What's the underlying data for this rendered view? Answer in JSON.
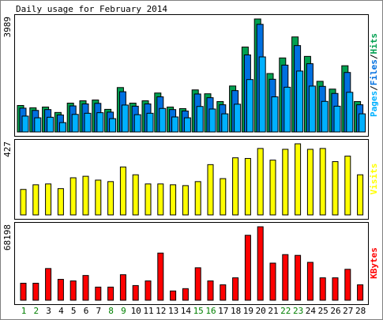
{
  "chart_data": {
    "type": "bar",
    "title": "Daily usage for February 2014",
    "categories": [
      "1",
      "2",
      "3",
      "4",
      "5",
      "6",
      "7",
      "8",
      "9",
      "10",
      "11",
      "12",
      "13",
      "14",
      "15",
      "16",
      "17",
      "18",
      "19",
      "20",
      "21",
      "22",
      "23",
      "24",
      "25",
      "26",
      "27",
      "28"
    ],
    "category_colors": [
      "#008000",
      "#008000",
      "#000000",
      "#000000",
      "#000000",
      "#000000",
      "#000000",
      "#008000",
      "#008000",
      "#000000",
      "#000000",
      "#000000",
      "#000000",
      "#000000",
      "#008000",
      "#008000",
      "#000000",
      "#000000",
      "#000000",
      "#000000",
      "#000000",
      "#008000",
      "#008000",
      "#000000",
      "#000000",
      "#000000",
      "#000000",
      "#000000"
    ],
    "legend_separator": "/",
    "panels": [
      {
        "ylim": [
          0,
          3989
        ],
        "yticks": [
          3989
        ],
        "series": [
          {
            "name": "Hits",
            "color": "#00a050",
            "values": [
              935,
              853,
              880,
              688,
              1018,
              1100,
              1128,
              798,
              1568,
              1018,
              1100,
              1375,
              880,
              825,
              1485,
              1348,
              1073,
              1623,
              2998,
              3989,
              2063,
              2613,
              3355,
              2668,
              1788,
              1513,
              2338,
              1073
            ]
          },
          {
            "name": "Files",
            "color": "#0070e0",
            "values": [
              840,
              760,
              790,
              600,
              920,
              990,
              1010,
              700,
              1420,
              910,
              990,
              1240,
              790,
              740,
              1340,
              1210,
              960,
              1460,
              2720,
              3800,
              1860,
              2360,
              3050,
              2410,
              1610,
              1360,
              2100,
              960
            ]
          },
          {
            "name": "Pages",
            "color": "#00b0ff",
            "values": [
              560,
              500,
              520,
              330,
              620,
              660,
              680,
              470,
              950,
              610,
              660,
              830,
              530,
              500,
              900,
              810,
              640,
              980,
              1850,
              2650,
              1240,
              1580,
              2150,
              1620,
              1080,
              910,
              1400,
              640
            ]
          }
        ]
      },
      {
        "ylim": [
          0,
          427
        ],
        "yticks": [
          427
        ],
        "series": [
          {
            "name": "Visits",
            "color": "#ffff00",
            "values": [
              153,
              181,
              186,
              158,
              223,
              232,
              209,
              200,
              288,
              241,
              186,
              186,
              181,
              176,
              200,
              302,
              218,
              343,
              339,
              399,
              329,
              394,
              427,
              394,
              399,
              320,
              353,
              241
            ]
          }
        ]
      },
      {
        "ylim": [
          0,
          68198
        ],
        "yticks": [
          68198
        ],
        "series": [
          {
            "name": "KBytes",
            "color": "#ff0000",
            "values": [
              15800,
              15800,
              29440,
              19390,
              17950,
              22980,
              12210,
              12210,
              23700,
              13640,
              17950,
              43800,
              8620,
              10770,
              30160,
              17950,
              14360,
              20820,
              60300,
              68198,
              34460,
              42370,
              41650,
              35190,
              20820,
              20820,
              28720,
              14360
            ]
          }
        ]
      }
    ]
  }
}
